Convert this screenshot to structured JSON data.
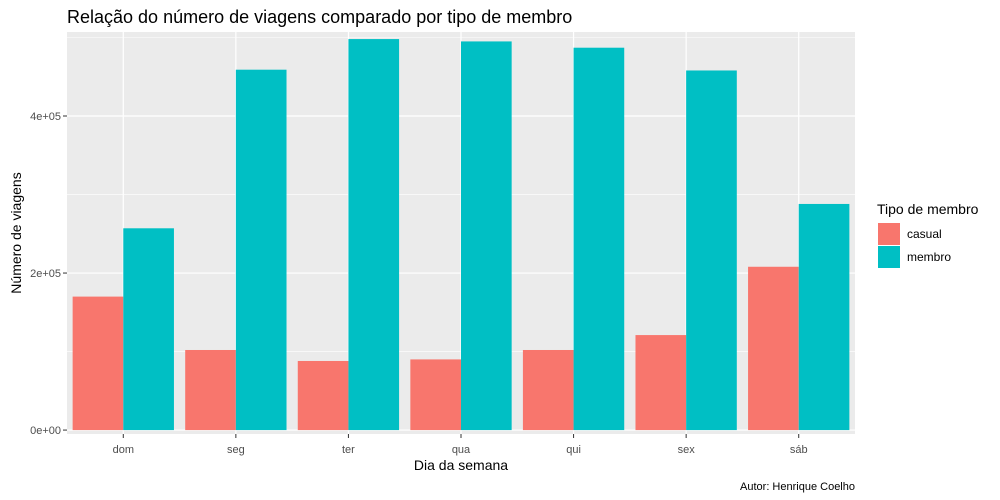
{
  "chart_data": {
    "type": "bar",
    "title": "Relação do número de viagens comparado por tipo de membro",
    "xlabel": "Dia da semana",
    "ylabel": "Número de viagens",
    "caption": "Autor: Henrique Coelho",
    "categories": [
      "dom",
      "seg",
      "ter",
      "qua",
      "qui",
      "sex",
      "sáb"
    ],
    "series": [
      {
        "name": "casual",
        "color": "#F8766D",
        "values": [
          170000,
          102000,
          88000,
          90000,
          102000,
          121000,
          208000
        ]
      },
      {
        "name": "membro",
        "color": "#00BFC4",
        "values": [
          257000,
          459000,
          498000,
          495000,
          487000,
          458000,
          288000
        ]
      }
    ],
    "ylim": [
      -5000,
      507000
    ],
    "yticks": [
      0,
      200000,
      400000
    ],
    "ytick_labels": [
      "0e+00",
      "2e+05",
      "4e+05"
    ],
    "grid": true,
    "legend": {
      "title": "Tipo de membro",
      "position": "right"
    },
    "panel_color": "#EBEBEB"
  }
}
